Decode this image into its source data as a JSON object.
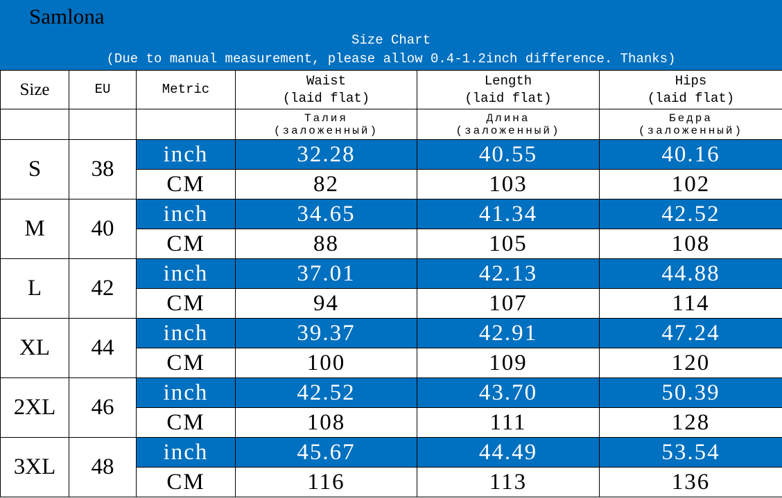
{
  "header": {
    "brand": "Samlona",
    "title": "Size Chart",
    "note": "(Due to manual measurement, please allow 0.4-1.2inch difference. Thanks)"
  },
  "table": {
    "columns": [
      "Size",
      "EU",
      "Metric"
    ],
    "measures": [
      {
        "en": "Waist",
        "en_note": "(laid flat)",
        "ru": "Талия",
        "ru_note": "(заложенный)"
      },
      {
        "en": "Length",
        "en_note": "(laid flat)",
        "ru": "Длина",
        "ru_note": "(заложенный)"
      },
      {
        "en": "Hips",
        "en_note": "(laid flat)",
        "ru": "Бедра",
        "ru_note": "(заложенный)"
      }
    ],
    "rows": [
      {
        "size": "S",
        "eu": "38",
        "inch": {
          "unit": "inch",
          "values": [
            "32.28",
            "40.55",
            "40.16"
          ]
        },
        "cm": {
          "unit": "CM",
          "values": [
            "82",
            "103",
            "102"
          ]
        }
      },
      {
        "size": "M",
        "eu": "40",
        "inch": {
          "unit": "inch",
          "values": [
            "34.65",
            "41.34",
            "42.52"
          ]
        },
        "cm": {
          "unit": "CM",
          "values": [
            "88",
            "105",
            "108"
          ]
        }
      },
      {
        "size": "L",
        "eu": "42",
        "inch": {
          "unit": "inch",
          "values": [
            "37.01",
            "42.13",
            "44.88"
          ]
        },
        "cm": {
          "unit": "CM",
          "values": [
            "94",
            "107",
            "114"
          ]
        }
      },
      {
        "size": "XL",
        "eu": "44",
        "inch": {
          "unit": "inch",
          "values": [
            "39.37",
            "42.91",
            "47.24"
          ]
        },
        "cm": {
          "unit": "CM",
          "values": [
            "100",
            "109",
            "120"
          ]
        }
      },
      {
        "size": "2XL",
        "eu": "46",
        "inch": {
          "unit": "inch",
          "values": [
            "42.52",
            "43.70",
            "50.39"
          ]
        },
        "cm": {
          "unit": "CM",
          "values": [
            "108",
            "111",
            "128"
          ]
        }
      },
      {
        "size": "3XL",
        "eu": "48",
        "inch": {
          "unit": "inch",
          "values": [
            "45.67",
            "44.49",
            "53.54"
          ]
        },
        "cm": {
          "unit": "CM",
          "values": [
            "116",
            "113",
            "136"
          ]
        }
      }
    ]
  }
}
